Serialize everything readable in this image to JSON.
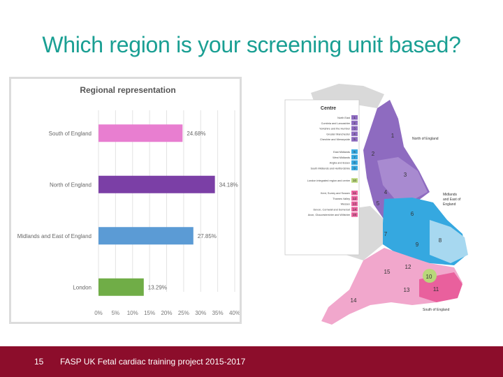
{
  "slide": {
    "title": "Which region is your screening unit based?",
    "page_number": "15",
    "footer_text": "FASP UK Fetal cardiac training project 2015-2017"
  },
  "colors": {
    "title": "#1a9f93",
    "footer": "#8c0d2b"
  },
  "chart_data": {
    "type": "bar",
    "orientation": "horizontal",
    "title": "Regional representation",
    "categories": [
      "South of England",
      "North of England",
      "Midlands and East of England",
      "London"
    ],
    "values": [
      24.68,
      34.18,
      27.85,
      13.29
    ],
    "value_labels": [
      "24.68%",
      "34.18%",
      "27.85%",
      "13.29%"
    ],
    "bar_colors": [
      "#e87ed0",
      "#7b3fa6",
      "#5b9bd5",
      "#70ad47"
    ],
    "xlim": [
      0,
      40
    ],
    "xticks": [
      "0%",
      "5%",
      "10%",
      "15%",
      "20%",
      "25%",
      "30%",
      "35%",
      "40%"
    ],
    "grid": true,
    "xlabel": "",
    "ylabel": ""
  },
  "map": {
    "legend_title": "Centre",
    "legend_groups": [
      {
        "color": "#8e6bc0",
        "items": [
          {
            "name": "North East",
            "num": "1"
          },
          {
            "name": "Cumbria and Lancashire",
            "num": "2"
          },
          {
            "name": "Yorkshire and the Humber",
            "num": "3"
          },
          {
            "name": "Greater Manchester",
            "num": "4"
          },
          {
            "name": "Cheshire and Merseyside",
            "num": "5"
          }
        ]
      },
      {
        "color": "#35a8e0",
        "items": [
          {
            "name": "East Midlands",
            "num": "6"
          },
          {
            "name": "West Midlands",
            "num": "7"
          },
          {
            "name": "Anglia and Essex",
            "num": "8"
          },
          {
            "name": "South Midlands and Hertfordshire",
            "num": "9"
          }
        ]
      },
      {
        "color": "#b9d77a",
        "items": [
          {
            "name": "London integrated region and centre",
            "num": "10"
          }
        ]
      },
      {
        "color": "#e9609d",
        "items": [
          {
            "name": "Kent, Surrey and Sussex",
            "num": "11"
          },
          {
            "name": "Thames Valley",
            "num": "12"
          },
          {
            "name": "Wessex",
            "num": "13"
          },
          {
            "name": "Devon, Cornwall and Somerset",
            "num": "14"
          },
          {
            "name": "Avon, Gloucestershire and Wiltshire",
            "num": "15"
          }
        ]
      }
    ],
    "region_labels": {
      "north": "North of England",
      "midlands": "Midlands and East of England",
      "south": "South of England"
    },
    "region_numbers": [
      "1",
      "2",
      "3",
      "4",
      "5",
      "6",
      "7",
      "8",
      "9",
      "10",
      "11",
      "12",
      "13",
      "14",
      "15"
    ]
  }
}
